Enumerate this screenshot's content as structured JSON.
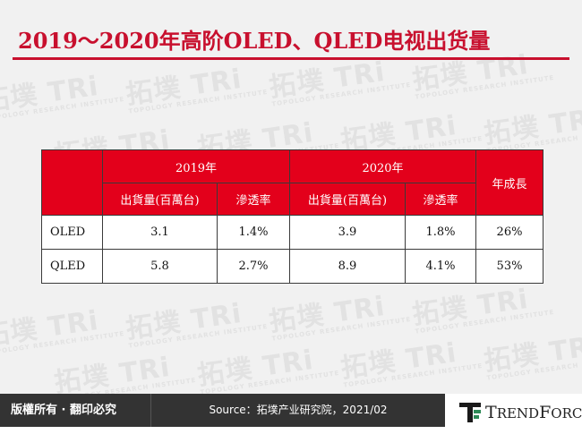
{
  "title": "2019～2020年高阶OLED、QLED电视出货量",
  "watermark": {
    "main": "拓墣 TRi",
    "sub": "TOPOLOGY RESEARCH INSTITUTE"
  },
  "table": {
    "year_headers": [
      "2019年",
      "2020年"
    ],
    "growth_header": "年成長",
    "sub_headers": [
      "出貨量(百萬台)",
      "滲透率",
      "出貨量(百萬台)",
      "滲透率"
    ],
    "rows": [
      {
        "label": "OLED",
        "cells": [
          "3.1",
          "1.4%",
          "3.9",
          "1.8%",
          "26%"
        ]
      },
      {
        "label": "QLED",
        "cells": [
          "5.8",
          "2.7%",
          "8.9",
          "4.1%",
          "53%"
        ]
      }
    ]
  },
  "footer": {
    "copyright": "版權所有 · 翻印必究",
    "source": "Source：拓墣产业研究院，2021/02",
    "logo_first_letter": "T",
    "logo_rest_1": "REND",
    "logo_second_letter": "F",
    "logo_rest_2": "ORCE"
  },
  "colors": {
    "accent": "#c8102e",
    "header_fill": "#e3001b",
    "footer_bar": "#333333"
  }
}
